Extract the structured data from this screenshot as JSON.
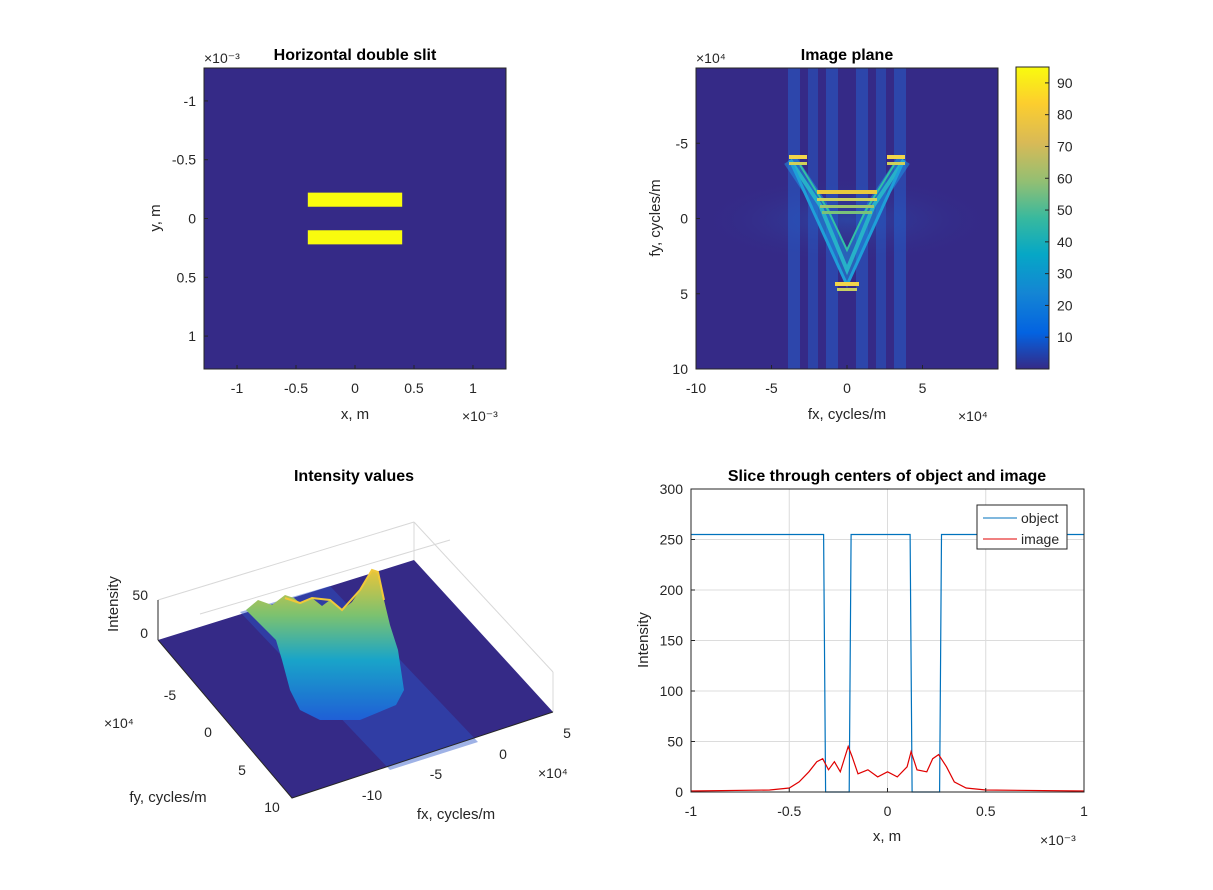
{
  "chart_data": [
    {
      "type": "heatmap",
      "title": "Horizontal double slit",
      "xlabel": "x, m",
      "ylabel": "y, m",
      "x_ticks": [
        "-1",
        "-0.5",
        "0",
        "0.5",
        "1"
      ],
      "y_ticks": [
        "-1",
        "-0.5",
        "0",
        "0.5",
        "1"
      ],
      "x_exponent": "×10⁻³",
      "y_exponent": "×10⁻³",
      "xlim": [
        -1.28,
        1.28
      ],
      "ylim": [
        -1.28,
        1.28
      ],
      "background_color": "#352a87",
      "slit_color": "#f9fb0e",
      "slits": [
        {
          "x": [
            -0.4,
            0.4
          ],
          "y": [
            -0.22,
            -0.1
          ]
        },
        {
          "x": [
            -0.4,
            0.4
          ],
          "y": [
            0.1,
            0.22
          ]
        }
      ]
    },
    {
      "type": "heatmap",
      "title": "Image plane",
      "xlabel": "fx, cycles/m",
      "ylabel": "fy, cycles/m",
      "x_ticks": [
        "-10",
        "-5",
        "0",
        "5"
      ],
      "y_ticks": [
        "-5",
        "0",
        "5",
        "10"
      ],
      "x_exponent": "×10⁴",
      "y_exponent": "×10⁴",
      "xlim": [
        -10,
        10
      ],
      "ylim": [
        -10,
        10
      ],
      "colorbar_ticks": [
        "10",
        "20",
        "30",
        "40",
        "50",
        "60",
        "70",
        "80",
        "90"
      ],
      "colorbar_range": [
        0,
        95
      ]
    },
    {
      "type": "surface",
      "title": "Intensity values",
      "xlabel": "fx, cycles/m",
      "ylabel": "fy, cycles/m",
      "zlabel": "Intensity",
      "x_ticks": [
        "-10",
        "-5",
        "0",
        "5"
      ],
      "y_ticks": [
        "-5",
        "0",
        "5",
        "10"
      ],
      "z_ticks": [
        "0",
        "50"
      ],
      "x_exponent": "×10⁴",
      "y_exponent": "×10⁴"
    },
    {
      "type": "line",
      "title": "Slice through centers of object and image",
      "xlabel": "x, m",
      "ylabel": "Intensity",
      "x_ticks": [
        "-1",
        "-0.5",
        "0",
        "0.5",
        "1"
      ],
      "y_ticks": [
        "0",
        "50",
        "100",
        "150",
        "200",
        "250",
        "300"
      ],
      "x_exponent": "×10⁻³",
      "xlim": [
        -1,
        1
      ],
      "ylim": [
        0,
        300
      ],
      "grid": true,
      "legend_position": "top-right",
      "series": [
        {
          "name": "object",
          "color": "#0072bd",
          "x": [
            -1,
            -0.325,
            -0.315,
            -0.195,
            -0.185,
            0.115,
            0.125,
            0.265,
            0.275,
            1
          ],
          "y": [
            255,
            255,
            0,
            0,
            255,
            255,
            0,
            0,
            255,
            255
          ]
        },
        {
          "name": "image",
          "color": "#e00000",
          "x": [
            -1,
            -0.6,
            -0.5,
            -0.45,
            -0.4,
            -0.36,
            -0.33,
            -0.3,
            -0.27,
            -0.24,
            -0.2,
            -0.18,
            -0.15,
            -0.1,
            -0.05,
            0,
            0.05,
            0.1,
            0.12,
            0.15,
            0.2,
            0.23,
            0.26,
            0.3,
            0.34,
            0.4,
            0.5,
            1
          ],
          "y": [
            1,
            2,
            4,
            10,
            20,
            30,
            33,
            22,
            30,
            20,
            45,
            35,
            18,
            22,
            15,
            20,
            15,
            25,
            40,
            22,
            20,
            33,
            37,
            25,
            10,
            4,
            2,
            1
          ]
        }
      ]
    }
  ]
}
